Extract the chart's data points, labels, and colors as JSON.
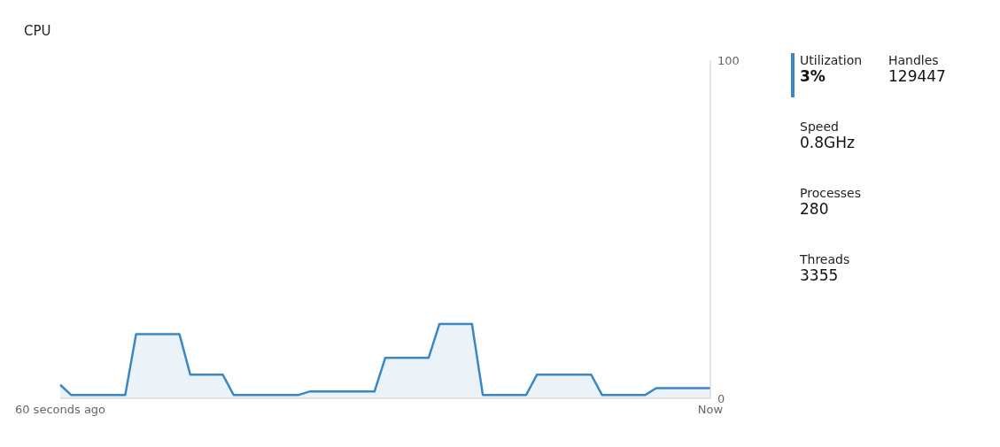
{
  "chart_data": [
    {
      "type": "area",
      "title": "CPU",
      "categories": [
        "60 seconds ago",
        null,
        null,
        null,
        null,
        null,
        null,
        null,
        null,
        null,
        null,
        null,
        null,
        null,
        null,
        null,
        null,
        null,
        null,
        null,
        null,
        null,
        null,
        null,
        null,
        null,
        null,
        null,
        null,
        null,
        null,
        null,
        null,
        null,
        null,
        null,
        null,
        null,
        null,
        null,
        null,
        null,
        null,
        null,
        null,
        null,
        null,
        null,
        null,
        null,
        null,
        null,
        null,
        null,
        null,
        null,
        null,
        null,
        null,
        null,
        "Now"
      ],
      "series": [
        {
          "color": "#3a87c6",
          "values": [
            4,
            1,
            1,
            1,
            1,
            1,
            1,
            19,
            19,
            19,
            19,
            19,
            7,
            7,
            7,
            7,
            1,
            1,
            1,
            1,
            1,
            1,
            1,
            2,
            2,
            2,
            2,
            2,
            2,
            2,
            12,
            12,
            12,
            12,
            12,
            22,
            22,
            22,
            22,
            1,
            1,
            1,
            1,
            1,
            7,
            7,
            7,
            7,
            7,
            7,
            1,
            1,
            1,
            1,
            1,
            3,
            3,
            3,
            3,
            3,
            3
          ]
        }
      ],
      "ylim": [
        0,
        100
      ],
      "yticks": [
        0,
        100
      ],
      "grid": false,
      "legend": false
    },
    {
      "type": "other",
      "annotations": [
        "Utilization",
        "3%",
        "Handles",
        "129447",
        "Speed",
        "0.8GHz",
        "Processes",
        "280",
        "Threads",
        "3355"
      ]
    }
  ]
}
